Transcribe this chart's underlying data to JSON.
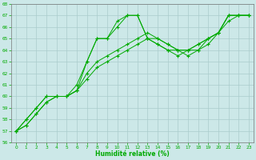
{
  "xlabel": "Humidité relative (%)",
  "xlim": [
    -0.5,
    23.5
  ],
  "ylim": [
    56,
    68
  ],
  "xticks": [
    0,
    1,
    2,
    3,
    4,
    5,
    6,
    7,
    8,
    9,
    10,
    11,
    12,
    13,
    14,
    15,
    16,
    17,
    18,
    19,
    20,
    21,
    22,
    23
  ],
  "yticks": [
    56,
    57,
    58,
    59,
    60,
    61,
    62,
    63,
    64,
    65,
    66,
    67,
    68
  ],
  "bg_color": "#cce8e8",
  "grid_color": "#aacccc",
  "line_color": "#00aa00",
  "series": [
    [
      57.0,
      58.0,
      59.0,
      60.0,
      60.0,
      60.0,
      61.0,
      63.0,
      65.0,
      65.0,
      66.0,
      67.0,
      67.0,
      65.0,
      65.0,
      64.5,
      64.0,
      64.0,
      64.0,
      65.0,
      65.5,
      67.0,
      67.0,
      67.0
    ],
    [
      57.0,
      57.5,
      58.5,
      59.5,
      60.0,
      60.0,
      60.5,
      61.5,
      62.5,
      63.0,
      63.5,
      64.0,
      64.5,
      65.0,
      64.5,
      64.0,
      63.5,
      64.0,
      64.5,
      65.0,
      65.5,
      66.5,
      67.0,
      67.0
    ],
    [
      57.0,
      57.5,
      58.5,
      59.5,
      60.0,
      60.0,
      60.5,
      62.0,
      63.0,
      63.5,
      64.0,
      64.5,
      65.0,
      65.5,
      65.0,
      64.5,
      64.0,
      64.0,
      64.5,
      65.0,
      65.5,
      67.0,
      67.0,
      67.0
    ],
    [
      57.0,
      58.0,
      59.0,
      60.0,
      60.0,
      60.0,
      60.5,
      63.0,
      65.0,
      65.0,
      66.5,
      67.0,
      67.0,
      65.0,
      64.5,
      64.0,
      64.0,
      63.5,
      64.0,
      64.5,
      65.5,
      67.0,
      67.0,
      67.0
    ]
  ]
}
